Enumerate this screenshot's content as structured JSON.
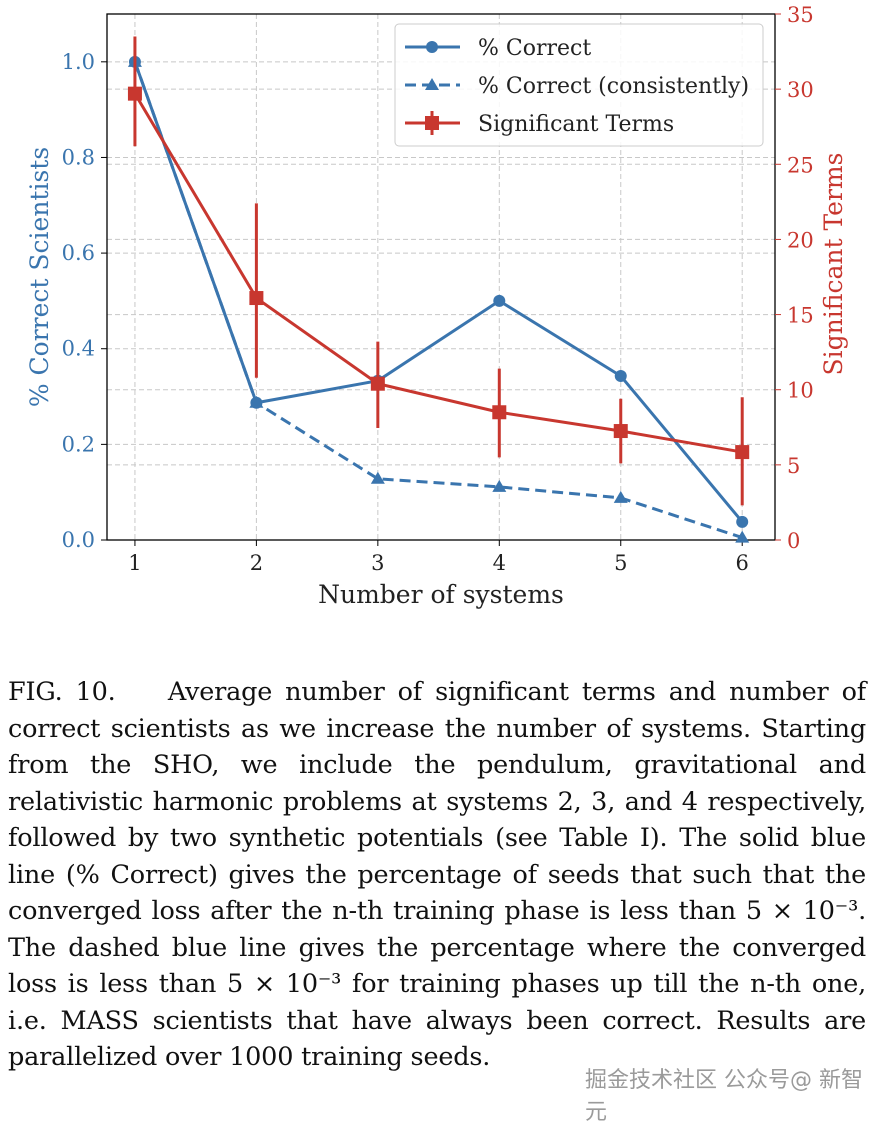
{
  "chart_data": {
    "type": "line",
    "xlabel": "Number of systems",
    "ylabel_left": "% Correct Scientists",
    "ylabel_right": "Significant Terms",
    "x": [
      1,
      2,
      3,
      4,
      5,
      6
    ],
    "xticks": [
      "1",
      "2",
      "3",
      "4",
      "5",
      "6"
    ],
    "xlim": [
      0.77,
      6.27
    ],
    "ylim_left": [
      0,
      1.1
    ],
    "yticks_left": [
      "0.0",
      "0.2",
      "0.4",
      "0.6",
      "0.8",
      "1.0"
    ],
    "ylim_right": [
      0,
      35
    ],
    "yticks_right": [
      "0",
      "5",
      "10",
      "15",
      "20",
      "25",
      "30",
      "35"
    ],
    "grid": true,
    "legend_position": "top-right",
    "series": [
      {
        "name": "% Correct",
        "axis": "left",
        "style": "solid",
        "marker": "circle",
        "color": "#3a75ae",
        "values": [
          1.0,
          0.287,
          0.333,
          0.5,
          0.343,
          0.038
        ]
      },
      {
        "name": "% Correct (consistently)",
        "axis": "left",
        "style": "dashed",
        "marker": "triangle",
        "color": "#3a75ae",
        "values": [
          1.0,
          0.287,
          0.128,
          0.111,
          0.088,
          0.005
        ]
      },
      {
        "name": "Significant Terms",
        "axis": "right",
        "style": "solid",
        "marker": "square",
        "color": "#c8372f",
        "values": [
          29.7,
          16.1,
          10.4,
          8.5,
          7.25,
          5.85
        ],
        "err_low": [
          26.2,
          10.8,
          7.45,
          5.5,
          5.1,
          2.3
        ],
        "err_high": [
          33.5,
          22.4,
          13.2,
          11.4,
          9.4,
          9.5
        ]
      }
    ]
  },
  "caption": {
    "label": "FIG. 10.",
    "text": "Average number of significant terms and number of correct scientists as we increase the number of systems. Starting from the SHO, we include the pendulum, gravitational and relativistic harmonic problems at systems 2, 3, and 4 respectively, followed by two synthetic potentials (see Table I). The solid blue line (% Correct) gives the percentage of seeds that such that the converged loss after the n-th training phase is less than 5 × 10⁻³. The dashed blue line gives the percentage where the converged loss is less than 5 × 10⁻³ for training phases up till the n-th one, i.e. MASS scientists that have always been correct. Results are parallelized over 1000 training seeds."
  },
  "watermark": "掘金技术社区 公众号@ 新智元"
}
